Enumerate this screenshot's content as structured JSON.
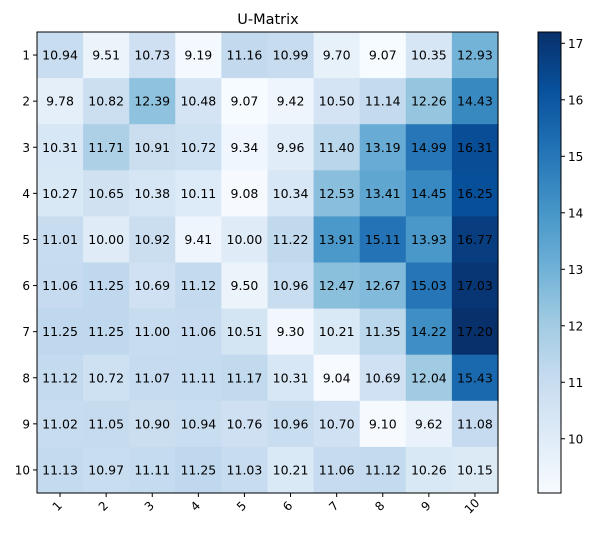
{
  "chart_data": {
    "type": "heatmap",
    "title": "U-Matrix",
    "xlabel": "",
    "ylabel": "",
    "x_categories": [
      "1",
      "2",
      "3",
      "4",
      "5",
      "6",
      "7",
      "8",
      "9",
      "10"
    ],
    "y_categories": [
      "1",
      "2",
      "3",
      "4",
      "5",
      "6",
      "7",
      "8",
      "9",
      "10"
    ],
    "values": [
      [
        10.94,
        9.51,
        10.73,
        9.19,
        11.16,
        10.99,
        9.7,
        9.07,
        10.35,
        12.93
      ],
      [
        9.78,
        10.82,
        12.39,
        10.48,
        9.07,
        9.42,
        10.5,
        11.14,
        12.26,
        14.43
      ],
      [
        10.31,
        11.71,
        10.91,
        10.72,
        9.34,
        9.96,
        11.4,
        13.19,
        14.99,
        16.31
      ],
      [
        10.27,
        10.65,
        10.38,
        10.11,
        9.08,
        10.34,
        12.53,
        13.41,
        14.45,
        16.25
      ],
      [
        11.01,
        10.0,
        10.92,
        9.41,
        10.0,
        11.22,
        13.91,
        15.11,
        13.93,
        16.77
      ],
      [
        11.06,
        11.25,
        10.69,
        11.12,
        9.5,
        10.96,
        12.47,
        12.67,
        15.03,
        17.03
      ],
      [
        11.25,
        11.25,
        11.0,
        11.06,
        10.51,
        9.3,
        10.21,
        11.35,
        14.22,
        17.2
      ],
      [
        11.12,
        10.72,
        11.07,
        11.11,
        11.17,
        10.31,
        9.04,
        10.69,
        12.04,
        15.43
      ],
      [
        11.02,
        11.05,
        10.9,
        10.94,
        10.76,
        10.96,
        10.7,
        9.1,
        9.62,
        11.08
      ],
      [
        11.13,
        10.97,
        11.11,
        11.25,
        11.03,
        10.21,
        11.06,
        11.12,
        10.26,
        10.15
      ]
    ],
    "colormap": "Blues",
    "color_min": 9.04,
    "color_max": 17.2,
    "colorbar_ticks": [
      10,
      11,
      12,
      13,
      14,
      15,
      16,
      17
    ],
    "colorbar_tick_labels": [
      "10",
      "11",
      "12",
      "13",
      "14",
      "15",
      "16",
      "17"
    ],
    "cell_labels": true,
    "x_tick_rotation": 45,
    "grid": false
  }
}
